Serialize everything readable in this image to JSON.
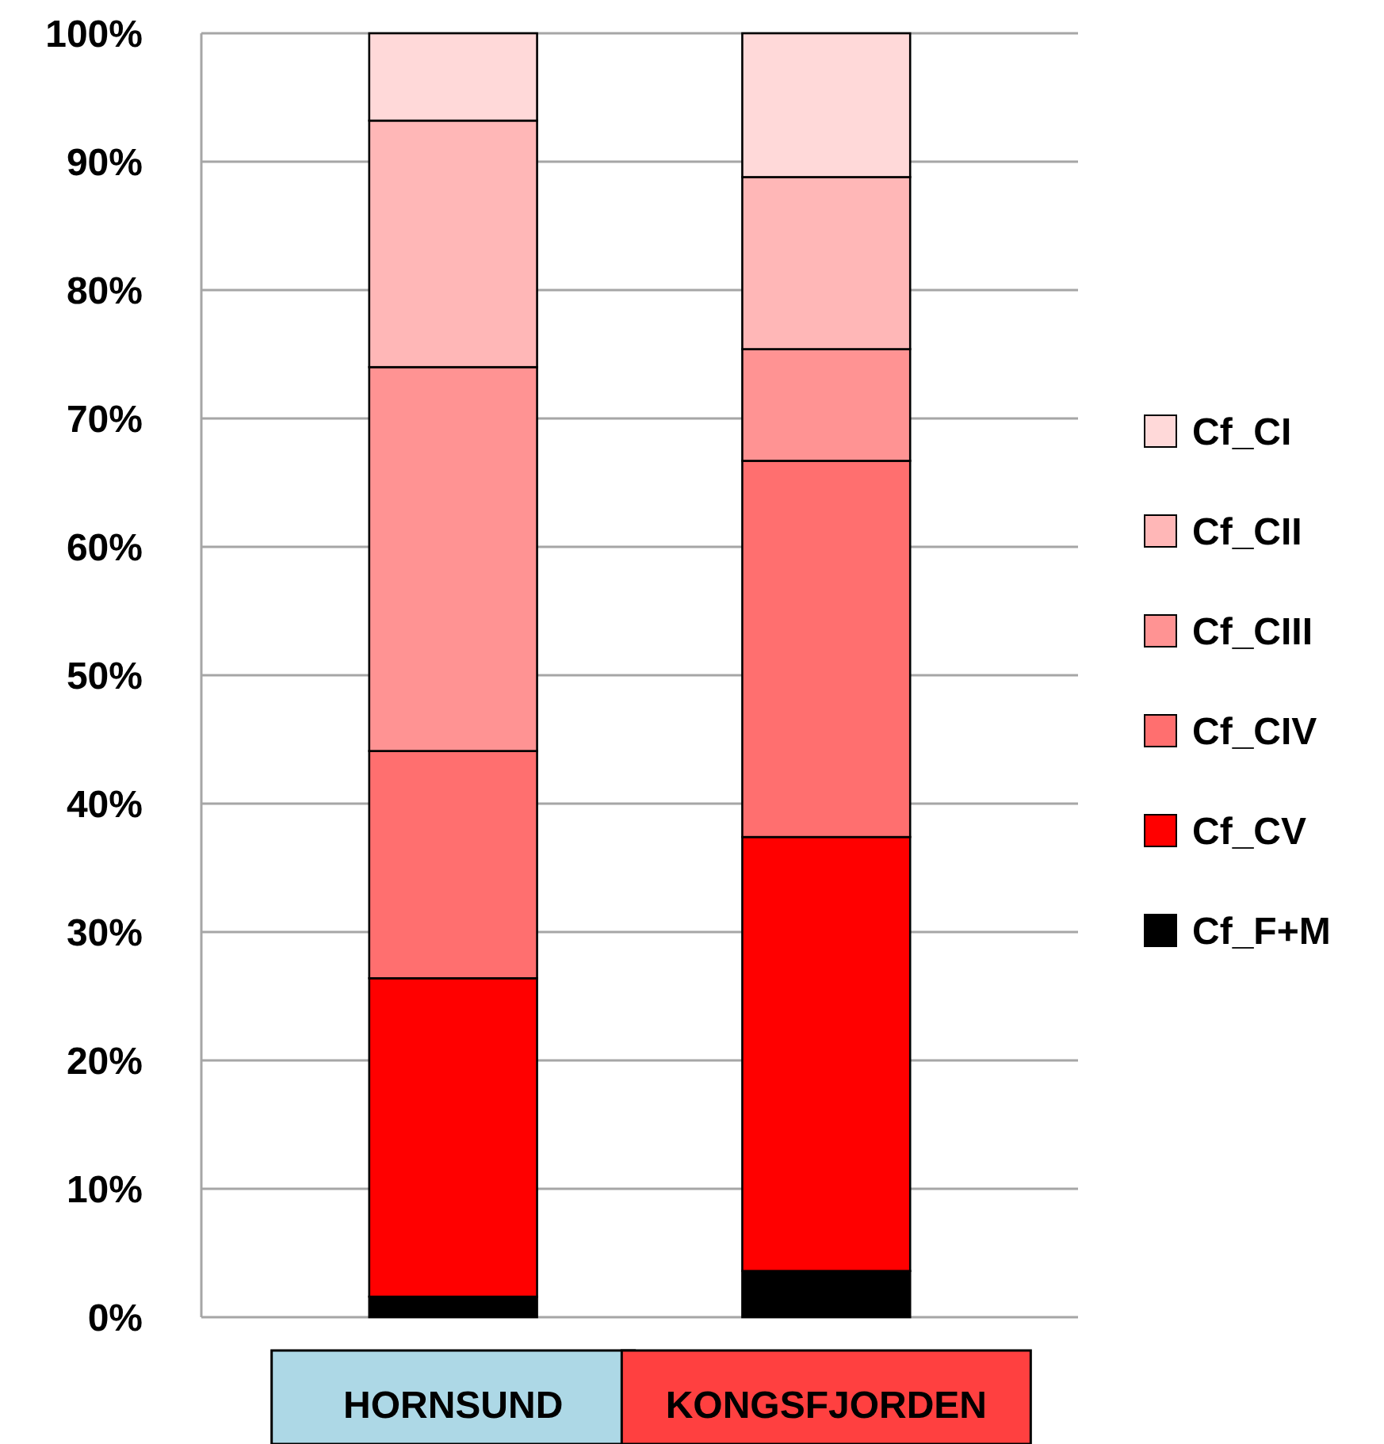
{
  "chart_data": {
    "type": "bar",
    "stacked": true,
    "categories": [
      "HORNSUND",
      "KONGSFJORDEN"
    ],
    "series": [
      {
        "name": "Cf_F+M",
        "color": "#000000",
        "values": [
          1.6,
          3.6
        ]
      },
      {
        "name": "Cf_CV",
        "color": "#ff0000",
        "values": [
          24.8,
          33.8
        ]
      },
      {
        "name": "Cf_CIV",
        "color": "#ff6f6f",
        "values": [
          17.7,
          29.3
        ]
      },
      {
        "name": "Cf_CIII",
        "color": "#ff9393",
        "values": [
          29.9,
          8.7
        ]
      },
      {
        "name": "Cf_CII",
        "color": "#ffb7b7",
        "values": [
          19.2,
          13.4
        ]
      },
      {
        "name": "Cf_CI",
        "color": "#ffd9d9",
        "values": [
          6.8,
          11.2
        ]
      }
    ],
    "ylim": [
      0,
      100
    ],
    "yticks": [
      {
        "value": 0,
        "label": "0%"
      },
      {
        "value": 10,
        "label": "10%"
      },
      {
        "value": 20,
        "label": "20%"
      },
      {
        "value": 30,
        "label": "30%"
      },
      {
        "value": 40,
        "label": "40%"
      },
      {
        "value": 50,
        "label": "50%"
      },
      {
        "value": 60,
        "label": "60%"
      },
      {
        "value": 70,
        "label": "70%"
      },
      {
        "value": 80,
        "label": "80%"
      },
      {
        "value": 90,
        "label": "90%"
      },
      {
        "value": 100,
        "label": "100%"
      }
    ],
    "grid": "y",
    "legend": "right"
  }
}
